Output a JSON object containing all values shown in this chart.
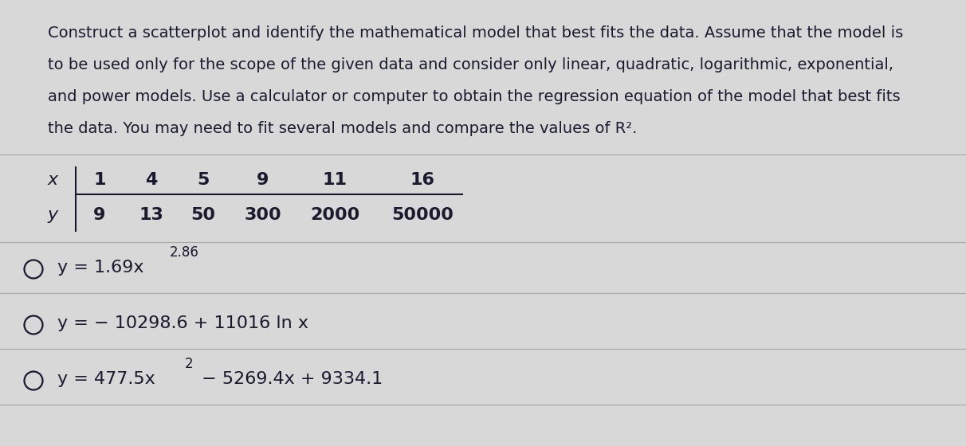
{
  "background_color": "#d8d8d8",
  "paragraph_text": [
    "Construct a scatterplot and identify the mathematical model that best fits the data. Assume that the model is",
    "to be used only for the scope of the given data and consider only linear, quadratic, logarithmic, exponential,",
    "and power models. Use a calculator or computer to obtain the regression equation of the model that best fits",
    "the data. You may need to fit several models and compare the values of R²."
  ],
  "table_x_values": [
    "1",
    "4",
    "5",
    "9",
    "11",
    "16"
  ],
  "table_y_values": [
    "9",
    "13",
    "50",
    "300",
    "2000",
    "50000"
  ],
  "options": [
    {
      "parts": [
        {
          "text": "y = 1.69x",
          "sup": false
        },
        {
          "text": "2.86",
          "sup": true
        }
      ]
    },
    {
      "parts": [
        {
          "text": "y = − 10298.6 + 11016 ln x",
          "sup": false
        }
      ]
    },
    {
      "parts": [
        {
          "text": "y = 477.5x",
          "sup": false
        },
        {
          "text": "2",
          "sup": true
        },
        {
          "text": " − 5269.4x + 9334.1",
          "sup": false
        }
      ]
    }
  ],
  "separator_color": "#aaaaaa",
  "text_color": "#1a1a2e",
  "fs_para": 14,
  "fs_table": 16,
  "fs_opt": 16,
  "fs_sup": 12
}
